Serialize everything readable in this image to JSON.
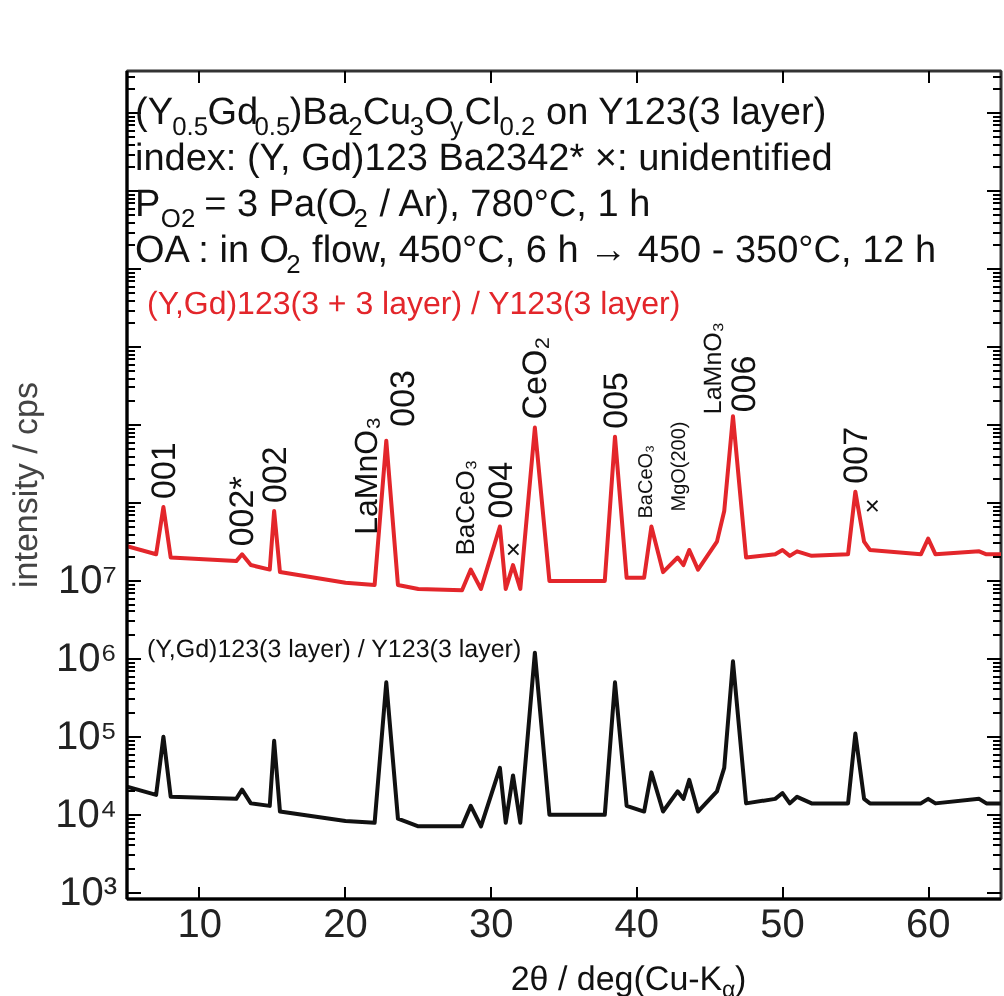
{
  "chart_data": {
    "type": "line",
    "xlabel": "2θ / deg(Cu-K$_{α}$)",
    "ylabel": "intensity / cps",
    "log": "y",
    "xlim": [
      5,
      65
    ],
    "ylim": [
      830,
      35000000000000.0
    ],
    "xticks": [
      10,
      20,
      30,
      40,
      50,
      60
    ],
    "yticks": [
      {
        "value": 1000,
        "label": "10³"
      },
      {
        "value": 10000,
        "label": "10⁴"
      },
      {
        "value": 100000,
        "label": "10⁵"
      },
      {
        "value": 1000000,
        "label": "10⁶"
      },
      {
        "value": 10000000,
        "label": "10⁷"
      },
      {
        "value": 100000000,
        "label": null
      },
      {
        "value": 1000000000,
        "label": null
      },
      {
        "value": 10000000000,
        "label": null
      },
      {
        "value": 100000000000,
        "label": null
      },
      {
        "value": 1000000000000,
        "label": null
      },
      {
        "value": 10000000000000,
        "label": null
      }
    ],
    "x": [
      5,
      7,
      7.5,
      8,
      12.5,
      12.9,
      13.5,
      14.8,
      15.1,
      15.5,
      20,
      22,
      22.8,
      23.6,
      25,
      28,
      28.6,
      29.3,
      30.6,
      31,
      31.5,
      32,
      33,
      34,
      37.8,
      38.5,
      39.3,
      40.5,
      41,
      41.8,
      42.8,
      43.2,
      43.6,
      44.2,
      45.5,
      46,
      46.6,
      47.5,
      49.5,
      50,
      50.5,
      51,
      52,
      54.5,
      55,
      55.6,
      56,
      59.5,
      60,
      60.5,
      63.5,
      64,
      65
    ],
    "series": [
      {
        "name": "(Y,Gd)123(3 + 3 layer) / Y123(3 layer)",
        "color": "#e3262b",
        "values": [
          28000000.0,
          22000000.0,
          89000000.0,
          20000000.0,
          18000000.0,
          22000000.0,
          16000000.0,
          14000000.0,
          79000000.0,
          13000000.0,
          9500000.0,
          8900000.0,
          630000000.0,
          8900000.0,
          7900000.0,
          7600000.0,
          14000000.0,
          7900000.0,
          50000000.0,
          7900000.0,
          16000000.0,
          7900000.0,
          930000000.0,
          10000000.0,
          10000000.0,
          710000000.0,
          11000000.0,
          11000000.0,
          50000000.0,
          13000000.0,
          20000000.0,
          16000000.0,
          25000000.0,
          14000000.0,
          32000000.0,
          79000000.0,
          1300000000.0,
          20000000.0,
          22000000.0,
          25000000.0,
          21000000.0,
          24000000.0,
          21000000.0,
          22000000.0,
          140000000.0,
          32000000.0,
          25000000.0,
          22000000.0,
          35000000.0,
          22000000.0,
          24000000.0,
          22000000.0,
          22000000.0
        ]
      },
      {
        "name": "(Y,Gd)123(3 layer) / Y123(3 layer)",
        "color": "#111111",
        "values": [
          23000,
          18000,
          100000,
          17000,
          16000,
          21000,
          14000,
          13000,
          89000,
          11000,
          8300,
          7900,
          500000,
          8900,
          7100,
          7100,
          13000,
          7100,
          40000,
          7900,
          32000,
          7900,
          1200000,
          10000,
          10000,
          500000,
          13000,
          11000,
          35000,
          11000,
          20000,
          16000,
          28000,
          11000,
          20000,
          40000,
          930000,
          14000,
          16000,
          19000,
          14000,
          17000,
          14000,
          14000,
          110000,
          16000,
          14000,
          14000,
          16000,
          14000,
          16000,
          14000,
          14000
        ]
      }
    ],
    "annotations": [
      "(Y$_{0.5}$Gd$_{0.5}$)Ba$_{2}$Cu$_{3}$O$_{y}$Cl$_{0.2}$ on Y123(3 layer)",
      "index: (Y, Gd)123 Ba2342*  ×: unidentified",
      "P$_{O2}$ = 3 Pa(O$_{2}$ / Ar), 780°C, 1 h",
      "OA : in O$_{2}$ flow, 450°C, 6 h →  450 - 350°C, 12 h",
      {
        "text": "001",
        "x": 7.5,
        "y": 89000000.0
      },
      {
        "text": "002*",
        "x": 12.9,
        "y": 22000000.0
      },
      {
        "text": "002",
        "x": 15.1,
        "y": 79000000.0
      },
      {
        "text": "LaMnO₃",
        "x": 22.8,
        "y": 630000000.0
      },
      {
        "text": "003",
        "x": 22.8,
        "y": 630000000.0
      },
      {
        "text": "BaCeO₃",
        "x": 28.6,
        "y": 14000000.0
      },
      {
        "text": "004",
        "x": 30.6,
        "y": 50000000.0
      },
      {
        "text": "×",
        "x": 31.5,
        "y": 16000000.0
      },
      {
        "text": "CeO₂",
        "x": 33,
        "y": 930000000.0
      },
      {
        "text": "005",
        "x": 38.5,
        "y": 710000000.0
      },
      {
        "text": "BaCeO₃",
        "x": 41,
        "y": 50000000.0
      },
      {
        "text": "MgO(200)",
        "x": 42.8,
        "y": 20000000.0
      },
      {
        "text": "LaMnO₃",
        "x": 46.6,
        "y": 1300000000.0
      },
      {
        "text": "006",
        "x": 46.6,
        "y": 1300000000.0
      },
      {
        "text": "007",
        "x": 55,
        "y": 140000000.0
      },
      {
        "text": "×",
        "x": 55.6,
        "y": 32000000.0
      }
    ]
  }
}
